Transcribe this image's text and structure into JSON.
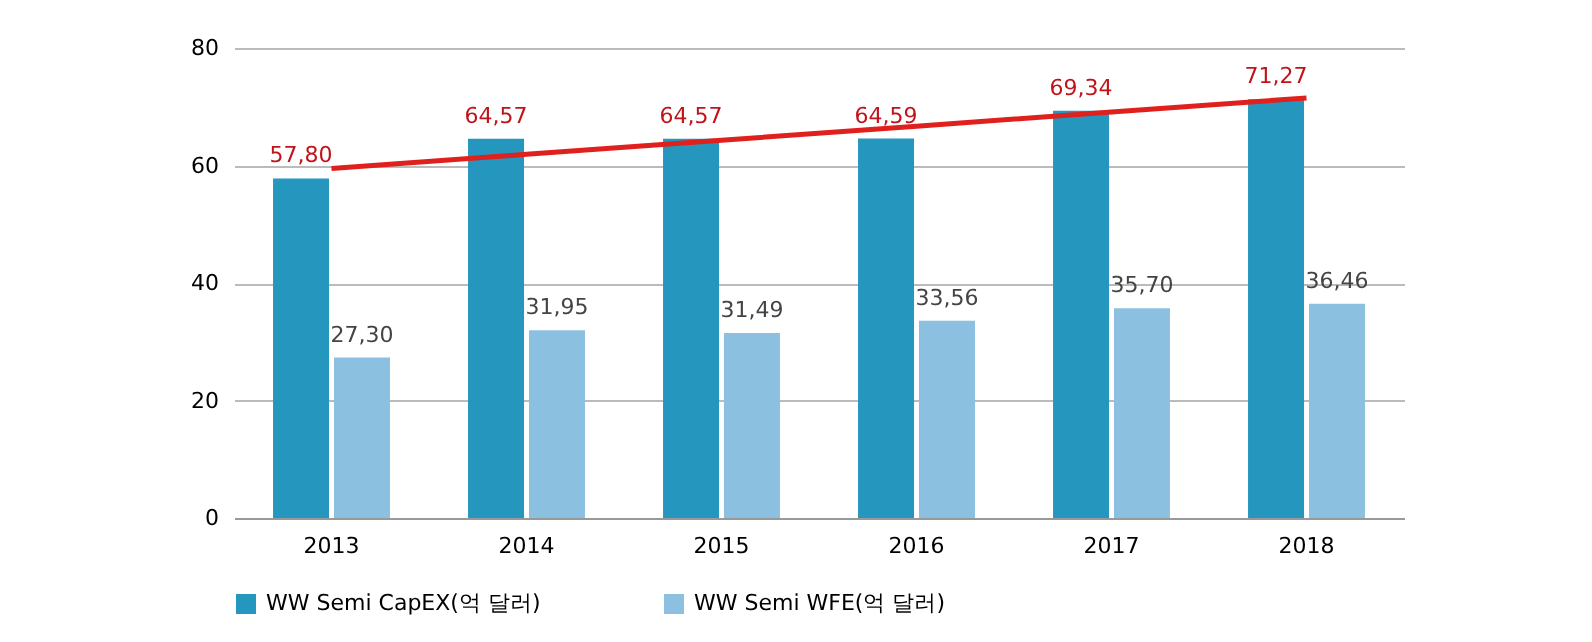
{
  "chart_data": {
    "type": "bar",
    "categories": [
      "2013",
      "2014",
      "2015",
      "2016",
      "2017",
      "2018"
    ],
    "series": [
      {
        "name": "WW Semi CapEX(억 달러)",
        "color": "#2596be",
        "values": [
          57.8,
          64.57,
          64.57,
          64.59,
          69.34,
          71.27
        ],
        "value_labels": [
          "57,80",
          "64,57",
          "64,57",
          "64,59",
          "69,34",
          "71,27"
        ]
      },
      {
        "name": "WW Semi WFE(억 달러)",
        "color": "#8cc0e0",
        "values": [
          27.3,
          31.95,
          31.49,
          33.56,
          35.7,
          36.46
        ],
        "value_labels": [
          "27,30",
          "31,95",
          "31,49",
          "33,56",
          "35,70",
          "36,46"
        ]
      },
      {
        "type": "line",
        "color": "#e0201c",
        "values": [
          59.5,
          61.9,
          64.3,
          66.7,
          69.1,
          71.5
        ],
        "marker": "none"
      }
    ],
    "ylim": [
      0,
      80
    ],
    "yticks": [
      0,
      20,
      40,
      60,
      80
    ],
    "grid": "y",
    "legend": "bottom"
  }
}
